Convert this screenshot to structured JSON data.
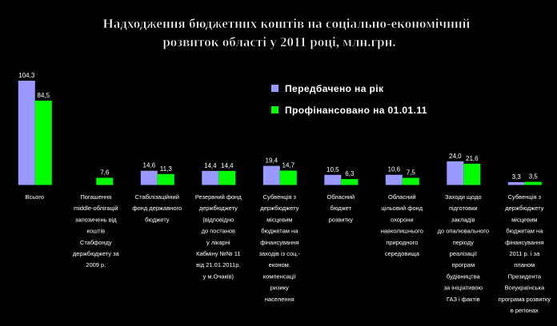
{
  "chart_data": {
    "type": "bar",
    "title_lines": [
      "Надходження бюджетних коштів на соціально-економічний",
      "розвиток області у 2011 році, млн.грн."
    ],
    "xlabel": "",
    "ylabel": "",
    "ylim": [
      0,
      104.3
    ],
    "grid": false,
    "legend_position": "top-right",
    "categories": [
      {
        "lines": [
          "Всього"
        ]
      },
      {
        "lines": [
          "Погашення",
          "middle-облігацій",
          "запозичень від",
          "коштів",
          "Стабфонду",
          "держбюджету за",
          "2009 р."
        ]
      },
      {
        "lines": [
          "Стабілізаційний",
          "фонд державного",
          "бюджету"
        ]
      },
      {
        "lines": [
          "Резервний фонд",
          "держбюджету",
          "(відповідно",
          "до постанов",
          "у лікарні",
          "Кабміну №№ 11",
          "від 21.01.2011р.",
          "у м.Очаків)"
        ]
      },
      {
        "lines": [
          "Субвенція з",
          "держбюджету",
          "місцевим",
          "бюджетам на",
          "фінансування",
          "заходів із соц.-",
          "економ.",
          "компенсації",
          "ризику",
          "населення"
        ]
      },
      {
        "lines": [
          "Обласний",
          "бюджет",
          "розвитку"
        ]
      },
      {
        "lines": [
          "Обласний",
          "цільовий фонд",
          "охорони",
          "навколишнього",
          "природного",
          "середовища"
        ]
      },
      {
        "lines": [
          "Заходи щодо",
          "підготовки",
          "закладів",
          "до опалювального",
          "періоду",
          "реалізації",
          "програм",
          "будівництва",
          "за ініціативою",
          "ГАЗ і фактів"
        ]
      },
      {
        "lines": [
          "Субвенція з",
          "держбюджету",
          "місцевим",
          "бюджетам на",
          "фінансування",
          "2011 р. і за",
          "планом",
          "Президента",
          "Всеукраїнська",
          "програма розвитку",
          "в регіонах"
        ]
      }
    ],
    "series": [
      {
        "name": "Передбачено на рік",
        "color": "#9999ff",
        "values": [
          104.3,
          null,
          14.6,
          14.4,
          19.4,
          10.5,
          10.6,
          24.0,
          3.3
        ]
      },
      {
        "name": "Профінансовано на 01.01.11",
        "color": "#00ff00",
        "values": [
          84.5,
          7.6,
          11.3,
          14.4,
          14.7,
          6.3,
          7.5,
          21.6,
          3.5
        ]
      }
    ],
    "value_labels": [
      [
        "104,3",
        "",
        "14,6",
        "14,4",
        "19,4",
        "10,5",
        "10,6",
        "24,0",
        "3,3"
      ],
      [
        "84,5",
        "7,6",
        "11,3",
        "14,4",
        "14,7",
        "6,3",
        "7,5",
        "21,6",
        "3,5"
      ]
    ]
  }
}
